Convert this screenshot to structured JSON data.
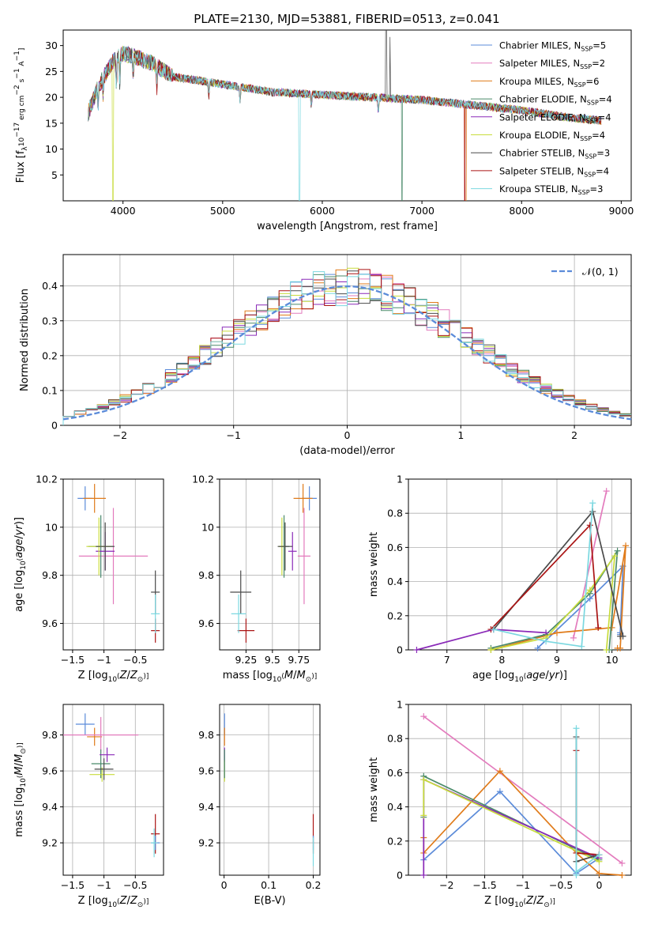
{
  "figure_title": "PLATE=2130, MJD=53881, FIBERID=0513, z=0.041",
  "colors": {
    "c0": "#5b8bd9",
    "c1": "#e37bbd",
    "c2": "#e07b1a",
    "c3": "#4a8a6a",
    "c4": "#8a2ab8",
    "c5": "#c8dc3c",
    "c6": "#4a4a4a",
    "c7": "#aa1414",
    "c8": "#7bd8e0"
  },
  "legend": [
    {
      "label": "Chabrier MILES, N_SSP=5",
      "color": "c0"
    },
    {
      "label": "Salpeter MILES, N_SSP=2",
      "color": "c1"
    },
    {
      "label": "Kroupa MILES, N_SSP=6",
      "color": "c2"
    },
    {
      "label": "Chabrier ELODIE, N_SSP=4",
      "color": "c3"
    },
    {
      "label": "Salpeter ELODIE, N_SSP=4",
      "color": "c4"
    },
    {
      "label": "Kroupa ELODIE, N_SSP=4",
      "color": "c5"
    },
    {
      "label": "Chabrier STELIB, N_SSP=3",
      "color": "c6"
    },
    {
      "label": "Salpeter STELIB, N_SSP=4",
      "color": "c7"
    },
    {
      "label": "Kroupa STELIB, N_SSP=3",
      "color": "c8"
    }
  ],
  "chart_data": [
    {
      "id": "spectrum",
      "type": "line",
      "title": "PLATE=2130, MJD=53881, FIBERID=0513, z=0.041",
      "xlabel": "wavelength [Angstrom, rest frame]",
      "ylabel": "Flux [f_λ 10^-17 erg cm^-2 s^-1 A^-1]",
      "xlim": [
        3400,
        9100
      ],
      "ylim": [
        0,
        33
      ],
      "xticks": [
        4000,
        5000,
        6000,
        7000,
        8000,
        9000
      ],
      "yticks": [
        5,
        10,
        15,
        20,
        25,
        30
      ],
      "grid": false,
      "legend_position": "top-right",
      "continuum": {
        "x": [
          3650,
          3750,
          3900,
          4000,
          4100,
          4300,
          4500,
          5000,
          5500,
          6000,
          6500,
          7000,
          7500,
          8000,
          8500,
          8800
        ],
        "y": [
          17,
          22,
          27,
          28.5,
          28,
          26.5,
          24,
          22.5,
          21,
          20.5,
          20,
          19.5,
          18.5,
          17.5,
          16,
          15.5
        ]
      }
    },
    {
      "id": "residuals",
      "type": "step",
      "xlabel": "(data-model)/error",
      "ylabel": "Normed distribution",
      "xlim": [
        -2.5,
        2.5
      ],
      "ylim": [
        0,
        0.49
      ],
      "xticks": [
        -2,
        -1,
        0,
        1,
        2
      ],
      "yticks": [
        0.0,
        0.1,
        0.2,
        0.3,
        0.4
      ],
      "grid": true,
      "legend_position": "top-right",
      "reference_curve": {
        "name": "N(0,1)",
        "mean": 0,
        "std": 1
      },
      "bin_width": 0.1,
      "bin_start": -2.5
    },
    {
      "id": "age_vs_Z",
      "type": "scatter",
      "xlabel": "Z [log10(Z/Z☉)]",
      "ylabel": "age [log10(age/yr)]",
      "xlim": [
        -1.65,
        -0.05
      ],
      "ylim": [
        9.49,
        10.2
      ],
      "xticks": [
        -1.5,
        -1.0,
        -0.5
      ],
      "yticks": [
        9.6,
        9.8,
        10.0,
        10.2
      ],
      "grid": true,
      "points": [
        {
          "color": "c0",
          "x": -1.3,
          "y": 10.12,
          "xerr": 0.12,
          "yerr": 0.05
        },
        {
          "color": "c2",
          "x": -1.15,
          "y": 10.12,
          "xerr": 0.18,
          "yerr": 0.06
        },
        {
          "color": "c1",
          "x": -0.85,
          "y": 9.88,
          "xerr": 0.55,
          "yerr": 0.2
        },
        {
          "color": "c3",
          "x": -1.05,
          "y": 9.92,
          "xerr": 0.2,
          "yerr": 0.13
        },
        {
          "color": "c4",
          "x": -0.98,
          "y": 9.9,
          "xerr": 0.15,
          "yerr": 0.08
        },
        {
          "color": "c5",
          "x": -1.08,
          "y": 9.92,
          "xerr": 0.2,
          "yerr": 0.12
        },
        {
          "color": "c6",
          "x": -0.98,
          "y": 9.92,
          "xerr": 0.15,
          "yerr": 0.1
        },
        {
          "color": "c6",
          "x": -0.18,
          "y": 9.73,
          "xerr": 0.07,
          "yerr": 0.09
        },
        {
          "color": "c7",
          "x": -0.18,
          "y": 9.57,
          "xerr": 0.07,
          "yerr": 0.05
        },
        {
          "color": "c8",
          "x": -0.18,
          "y": 9.64,
          "xerr": 0.07,
          "yerr": 0.08
        }
      ]
    },
    {
      "id": "age_vs_mass",
      "type": "scatter",
      "xlabel": "mass [log10(M/M☉)]",
      "ylabel": "",
      "xlim": [
        9.0,
        9.95
      ],
      "ylim": [
        9.49,
        10.2
      ],
      "xticks": [
        9.25,
        9.5,
        9.75
      ],
      "yticks": [
        9.6,
        9.8,
        10.0,
        10.2
      ],
      "grid": true,
      "points": [
        {
          "color": "c0",
          "x": 9.85,
          "y": 10.12,
          "xerr": 0.07,
          "yerr": 0.05
        },
        {
          "color": "c2",
          "x": 9.79,
          "y": 10.12,
          "xerr": 0.09,
          "yerr": 0.06
        },
        {
          "color": "c1",
          "x": 9.8,
          "y": 9.88,
          "xerr": 0.06,
          "yerr": 0.2
        },
        {
          "color": "c3",
          "x": 9.61,
          "y": 9.92,
          "xerr": 0.05,
          "yerr": 0.13
        },
        {
          "color": "c4",
          "x": 9.69,
          "y": 9.9,
          "xerr": 0.04,
          "yerr": 0.08
        },
        {
          "color": "c5",
          "x": 9.59,
          "y": 9.92,
          "xerr": 0.03,
          "yerr": 0.12
        },
        {
          "color": "c6",
          "x": 9.62,
          "y": 9.92,
          "xerr": 0.07,
          "yerr": 0.1
        },
        {
          "color": "c6",
          "x": 9.2,
          "y": 9.73,
          "xerr": 0.1,
          "yerr": 0.09
        },
        {
          "color": "c7",
          "x": 9.25,
          "y": 9.57,
          "xerr": 0.08,
          "yerr": 0.05
        },
        {
          "color": "c8",
          "x": 9.18,
          "y": 9.64,
          "xerr": 0.07,
          "yerr": 0.08
        }
      ]
    },
    {
      "id": "weight_vs_age",
      "type": "line",
      "xlabel": "age [log10(age/yr)]",
      "ylabel": "mass weight",
      "xlim": [
        6.3,
        10.35
      ],
      "ylim": [
        0,
        1.0
      ],
      "xticks": [
        7,
        8,
        9,
        10
      ],
      "yticks": [
        0.0,
        0.2,
        0.4,
        0.6,
        0.8,
        1.0
      ],
      "grid": true,
      "series": [
        {
          "color": "c0",
          "x": [
            8.65,
            9.6,
            10.2,
            10.15,
            10.15
          ],
          "y": [
            0.01,
            0.3,
            0.49,
            0.1,
            0.09
          ]
        },
        {
          "color": "c1",
          "x": [
            9.3,
            9.9
          ],
          "y": [
            0.07,
            0.93
          ]
        },
        {
          "color": "c2",
          "x": [
            7.8,
            9.0,
            10.0,
            10.25,
            10.15,
            10.1
          ],
          "y": [
            0.0,
            0.1,
            0.13,
            0.61,
            0.01,
            0.01
          ]
        },
        {
          "color": "c3",
          "x": [
            7.8,
            8.8,
            9.6,
            10.1,
            9.95
          ],
          "y": [
            0.01,
            0.09,
            0.33,
            0.58,
            0.0
          ]
        },
        {
          "color": "c4",
          "x": [
            6.45,
            7.85,
            8.8
          ],
          "y": [
            0.0,
            0.12,
            0.1
          ]
        },
        {
          "color": "c5",
          "x": [
            7.8,
            8.8,
            9.6,
            10.05,
            9.9
          ],
          "y": [
            0.0,
            0.07,
            0.35,
            0.55,
            0.0
          ]
        },
        {
          "color": "c6",
          "x": [
            7.85,
            9.65,
            10.2,
            10.15
          ],
          "y": [
            0.12,
            0.81,
            0.08,
            0.08
          ]
        },
        {
          "color": "c7",
          "x": [
            7.8,
            9.6,
            9.75
          ],
          "y": [
            0.12,
            0.73,
            0.13
          ]
        },
        {
          "color": "c8",
          "x": [
            7.85,
            8.8,
            9.45,
            9.65
          ],
          "y": [
            0.12,
            0.05,
            0.02,
            0.86
          ]
        }
      ]
    },
    {
      "id": "mass_vs_Z",
      "type": "scatter",
      "xlabel": "Z [log10(Z/Z☉)]",
      "ylabel": "mass [log10(M/M☉)]",
      "xlim": [
        -1.65,
        -0.05
      ],
      "ylim": [
        9.02,
        9.97
      ],
      "xticks": [
        -1.5,
        -1.0,
        -0.5
      ],
      "yticks": [
        9.2,
        9.4,
        9.6,
        9.8
      ],
      "grid": true,
      "points": [
        {
          "color": "c0",
          "x": -1.3,
          "y": 9.86,
          "xerr": 0.15,
          "yerr": 0.06
        },
        {
          "color": "c2",
          "x": -1.15,
          "y": 9.79,
          "xerr": 0.12,
          "yerr": 0.05
        },
        {
          "color": "c1",
          "x": -1.05,
          "y": 9.8,
          "xerr": 0.6,
          "yerr": 0.1
        },
        {
          "color": "c3",
          "x": -1.05,
          "y": 9.64,
          "xerr": 0.15,
          "yerr": 0.08
        },
        {
          "color": "c4",
          "x": -0.95,
          "y": 9.69,
          "xerr": 0.12,
          "yerr": 0.04
        },
        {
          "color": "c5",
          "x": -1.03,
          "y": 9.58,
          "xerr": 0.2,
          "yerr": 0.04
        },
        {
          "color": "c6",
          "x": -1.0,
          "y": 9.61,
          "xerr": 0.15,
          "yerr": 0.06
        },
        {
          "color": "c7",
          "x": -0.18,
          "y": 9.25,
          "xerr": 0.07,
          "yerr": 0.11
        },
        {
          "color": "c0",
          "x": -0.18,
          "y": 9.2,
          "xerr": 0.07,
          "yerr": 0.04
        },
        {
          "color": "c8",
          "x": -0.2,
          "y": 9.2,
          "xerr": 0.05,
          "yerr": 0.08
        }
      ]
    },
    {
      "id": "mass_vs_ebv",
      "type": "scatter",
      "xlabel": "E(B-V)",
      "ylabel": "",
      "xlim": [
        -0.01,
        0.215
      ],
      "ylim": [
        9.02,
        9.97
      ],
      "xticks": [
        0.0,
        0.1,
        0.2
      ],
      "yticks": [
        9.2,
        9.4,
        9.6,
        9.8
      ],
      "grid": true,
      "points": [
        {
          "color": "c0",
          "x": 0.001,
          "y": 9.86,
          "yerr": 0.06
        },
        {
          "color": "c2",
          "x": 0.001,
          "y": 9.79,
          "yerr": 0.05
        },
        {
          "color": "c4",
          "x": 0.001,
          "y": 9.69,
          "yerr": 0.04
        },
        {
          "color": "c5",
          "x": 0.001,
          "y": 9.6,
          "yerr": 0.06
        },
        {
          "color": "c3",
          "x": 0.001,
          "y": 9.64,
          "yerr": 0.08
        },
        {
          "color": "c7",
          "x": 0.2,
          "y": 9.25,
          "yerr": 0.11
        },
        {
          "color": "c0",
          "x": 0.2,
          "y": 9.2,
          "yerr": 0.04
        },
        {
          "color": "c8",
          "x": 0.2,
          "y": 9.15,
          "yerr": 0.08
        }
      ]
    },
    {
      "id": "weight_vs_Z",
      "type": "line",
      "xlabel": "Z [log10(Z/Z☉)]",
      "ylabel": "mass weight",
      "xlim": [
        -2.5,
        0.42
      ],
      "ylim": [
        0,
        1.0
      ],
      "xticks": [
        -2.0,
        -1.5,
        -1.0,
        -0.5,
        0.0
      ],
      "yticks": [
        0.0,
        0.2,
        0.4,
        0.6,
        0.8,
        1.0
      ],
      "grid": true,
      "series": [
        {
          "color": "c0",
          "x": [
            -2.3,
            -1.3,
            -0.3,
            0.0
          ],
          "y": [
            0.09,
            0.49,
            0.01,
            0.1
          ]
        },
        {
          "color": "c1",
          "x": [
            -2.3,
            0.3
          ],
          "y": [
            0.93,
            0.07
          ]
        },
        {
          "color": "c2",
          "x": [
            -2.3,
            -2.3,
            -1.3,
            -0.3,
            0.0,
            0.3
          ],
          "y": [
            0.22,
            0.13,
            0.61,
            0.13,
            0.01,
            0.0
          ]
        },
        {
          "color": "c3",
          "x": [
            -2.3,
            -2.3,
            0.0
          ],
          "y": [
            0.34,
            0.58,
            0.09
          ]
        },
        {
          "color": "c4",
          "x": [
            -2.3,
            -2.3,
            0.0
          ],
          "y": [
            0.0,
            0.56,
            0.1
          ]
        },
        {
          "color": "c5",
          "x": [
            -2.3,
            -2.3,
            0.0
          ],
          "y": [
            0.35,
            0.56,
            0.08
          ]
        },
        {
          "color": "c6",
          "x": [
            -0.3,
            -0.3,
            0.0
          ],
          "y": [
            0.81,
            0.08,
            0.12
          ]
        },
        {
          "color": "c7",
          "x": [
            -0.3,
            -0.3,
            0.0
          ],
          "y": [
            0.73,
            0.13,
            0.12
          ]
        },
        {
          "color": "c8",
          "x": [
            -0.3,
            -0.3,
            -0.3,
            0.0
          ],
          "y": [
            0.86,
            0.0,
            0.02,
            0.12
          ]
        }
      ]
    }
  ]
}
